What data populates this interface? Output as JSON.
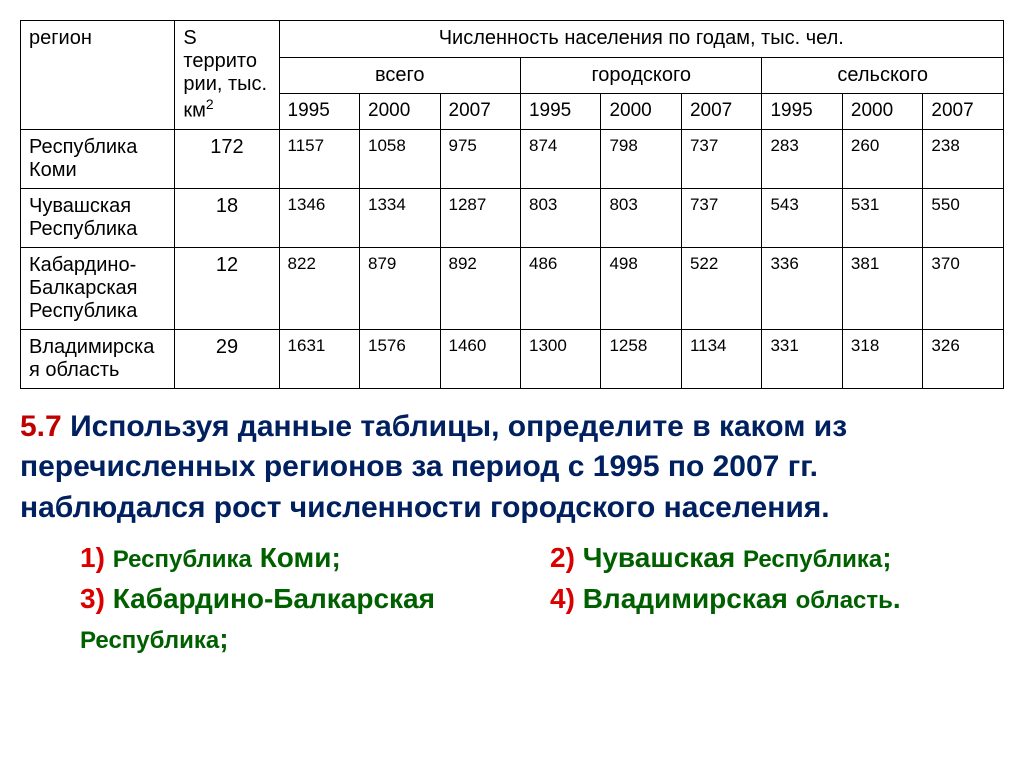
{
  "table": {
    "headers": {
      "region": "регион",
      "area": "S террито рии, тыс. км",
      "area_sup": "2",
      "population_title": "Численность населения по годам, тыс. чел.",
      "groups": {
        "total": "всего",
        "urban": "городского",
        "rural": "сельского"
      },
      "years": [
        "1995",
        "2000",
        "2007"
      ]
    },
    "rows": [
      {
        "region": "Республика Коми",
        "area": "172",
        "total": [
          "1157",
          "1058",
          "975"
        ],
        "urban": [
          "874",
          "798",
          "737"
        ],
        "rural": [
          "283",
          "260",
          "238"
        ]
      },
      {
        "region": "Чувашская Республика",
        "area": "18",
        "total": [
          "1346",
          "1334",
          "1287"
        ],
        "urban": [
          "803",
          "803",
          "737"
        ],
        "rural": [
          "543",
          "531",
          "550"
        ]
      },
      {
        "region": "Кабардино-Балкарская Республика",
        "area": "12",
        "total": [
          "822",
          "879",
          "892"
        ],
        "urban": [
          "486",
          "498",
          "522"
        ],
        "rural": [
          "336",
          "381",
          "370"
        ]
      },
      {
        "region": "Владимирска я область",
        "area": "29",
        "total": [
          "1631",
          "1576",
          "1460"
        ],
        "urban": [
          "1300",
          "1258",
          "1134"
        ],
        "rural": [
          "331",
          "318",
          "326"
        ]
      }
    ]
  },
  "question": {
    "number": "5.7",
    "text": "Используя данные таблицы, определите в каком из перечисленных регионов за период с 1995 по 2007 гг. наблюдался рост численности городского населения.",
    "options": {
      "o1n": "1)",
      "o1a": "Республика",
      "o1b": "Коми;",
      "o2n": "2)",
      "o2a": "Чувашская",
      "o2b": "Республика",
      "o2c": ";",
      "o3n": "3)",
      "o3a": "Кабардино-Балкарская",
      "o4n": "4)",
      "o4a": "Владимирская",
      "o4b": "область",
      "o4c": ".",
      "tail": "Республика",
      "tailc": ";"
    }
  }
}
